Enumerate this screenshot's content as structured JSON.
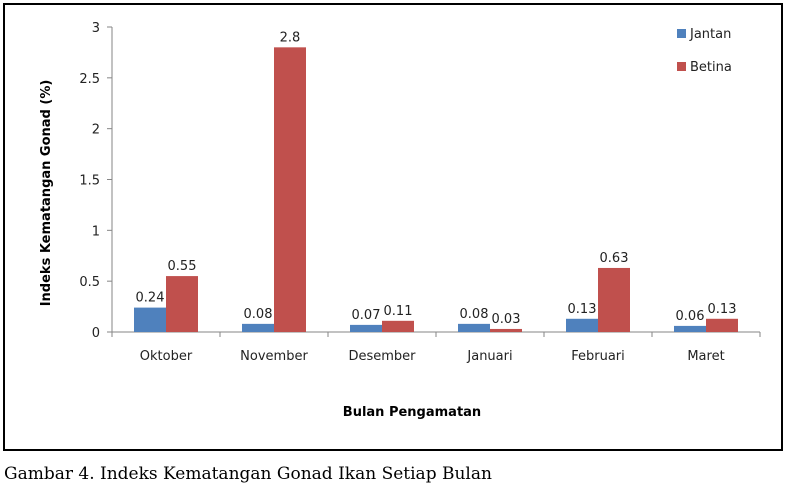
{
  "chart_data": {
    "type": "bar",
    "categories": [
      "Oktober",
      "November",
      "Desember",
      "Januari",
      "Februari",
      "Maret"
    ],
    "series": [
      {
        "name": "Jantan",
        "color": "#4f81bd",
        "values": [
          0.24,
          0.08,
          0.07,
          0.08,
          0.13,
          0.06
        ],
        "labels": [
          "0.24",
          "0.08",
          "0.07",
          "0.08",
          "0.13",
          "0.06"
        ]
      },
      {
        "name": "Betina",
        "color": "#c0504d",
        "values": [
          0.55,
          2.8,
          0.11,
          0.03,
          0.63,
          0.13
        ],
        "labels": [
          "0.55",
          "2.8",
          "0.11",
          "0.03",
          "0.63",
          "0.13"
        ]
      }
    ],
    "xlabel": "Bulan Pengamatan",
    "ylabel": "Indeks Kematangan Gonad (%)",
    "ylim": [
      0,
      3
    ],
    "yticks": [
      0,
      0.5,
      1,
      1.5,
      2,
      2.5,
      3
    ],
    "ytick_labels": [
      "0",
      "0.5",
      "1",
      "1.5",
      "2",
      "2.5",
      "3"
    ],
    "grid": false,
    "legend_position": "top-right"
  },
  "caption": "Gambar 4. Indeks Kematangan Gonad Ikan Setiap Bulan"
}
